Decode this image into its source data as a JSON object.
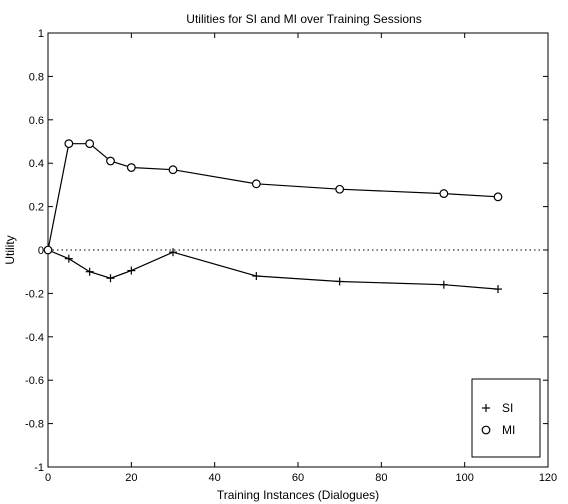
{
  "chart_data": {
    "type": "line",
    "title": "Utilities for SI and MI over Training Sessions",
    "xlabel": "Training Instances (Dialogues)",
    "ylabel": "Utility",
    "xlim": [
      0,
      120
    ],
    "ylim": [
      -1,
      1
    ],
    "xticks": [
      0,
      20,
      40,
      60,
      80,
      100,
      120
    ],
    "yticks": [
      -1,
      -0.8,
      -0.6,
      -0.4,
      -0.2,
      0,
      0.2,
      0.4,
      0.6,
      0.8,
      1
    ],
    "grid": false,
    "reference_line": {
      "y": 0,
      "style": "dotted"
    },
    "legend_position": "bottom-right",
    "series": [
      {
        "name": "SI",
        "marker": "plus",
        "x": [
          0,
          5,
          10,
          15,
          20,
          30,
          50,
          70,
          95,
          108
        ],
        "y": [
          0,
          -0.04,
          -0.1,
          -0.13,
          -0.095,
          -0.01,
          -0.12,
          -0.145,
          -0.16,
          -0.18
        ]
      },
      {
        "name": "MI",
        "marker": "circle",
        "x": [
          0,
          5,
          10,
          15,
          20,
          30,
          50,
          70,
          95,
          108
        ],
        "y": [
          0,
          0.49,
          0.49,
          0.41,
          0.38,
          0.37,
          0.305,
          0.28,
          0.26,
          0.245
        ]
      }
    ]
  }
}
